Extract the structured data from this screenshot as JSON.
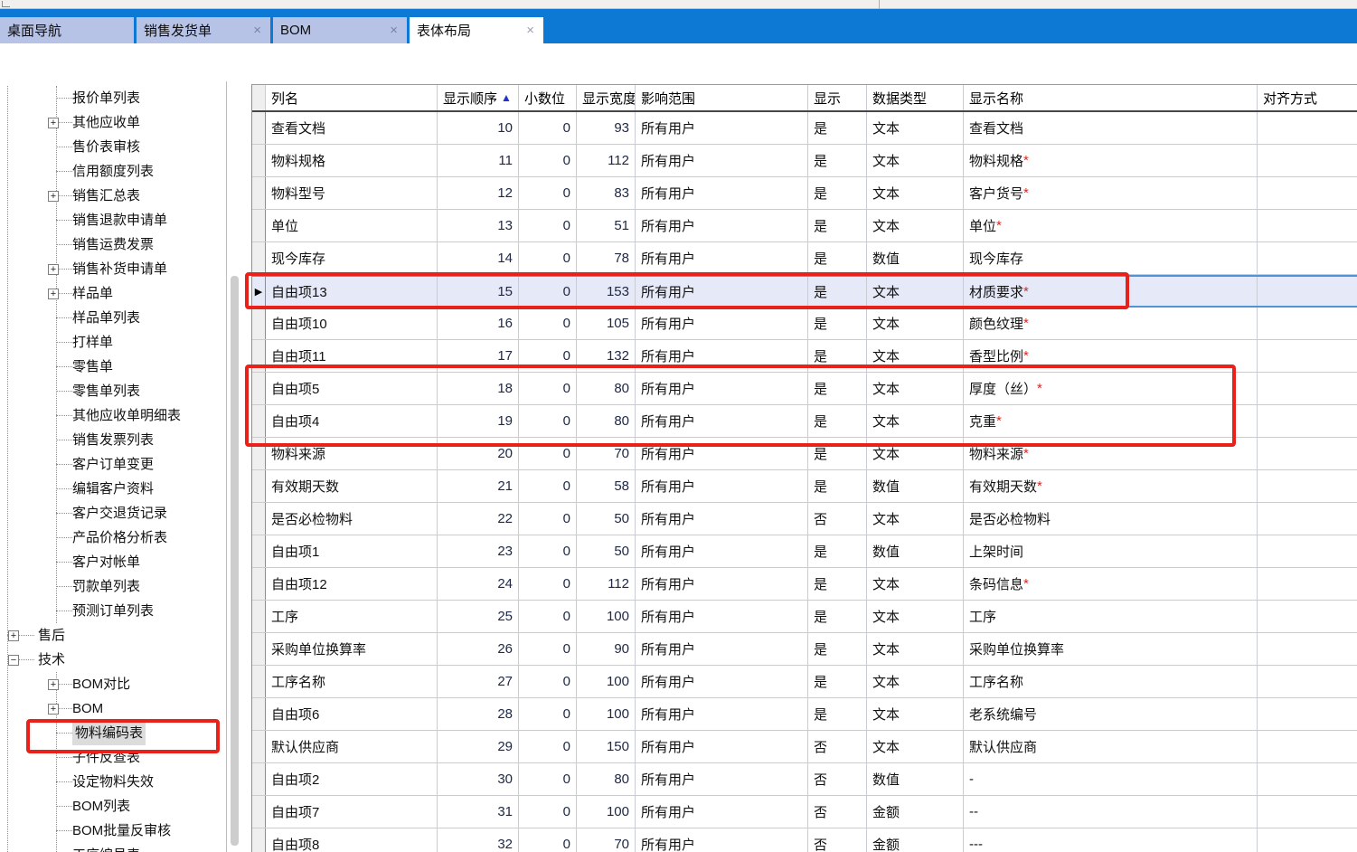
{
  "tabbar": {
    "accent_color": "#0d79d4",
    "inactive_tab_color": "#b7c3e6",
    "active_tab_color": "#ffffff",
    "close_icon": "×",
    "tabs": [
      {
        "label": "桌面导航",
        "closable": false,
        "active": false
      },
      {
        "label": "销售发货单",
        "closable": true,
        "active": false
      },
      {
        "label": "BOM",
        "closable": true,
        "active": false
      },
      {
        "label": "表体布局",
        "closable": true,
        "active": true
      }
    ]
  },
  "sidebar": {
    "items": [
      {
        "label": "报价单列表",
        "indent": 2,
        "expander": null,
        "selected": false
      },
      {
        "label": "其他应收单",
        "indent": 2,
        "expander": "plus",
        "selected": false
      },
      {
        "label": "售价表审核",
        "indent": 2,
        "expander": null,
        "selected": false
      },
      {
        "label": "信用额度列表",
        "indent": 2,
        "expander": null,
        "selected": false
      },
      {
        "label": "销售汇总表",
        "indent": 2,
        "expander": "plus",
        "selected": false
      },
      {
        "label": "销售退款申请单",
        "indent": 2,
        "expander": null,
        "selected": false
      },
      {
        "label": "销售运费发票",
        "indent": 2,
        "expander": null,
        "selected": false
      },
      {
        "label": "销售补货申请单",
        "indent": 2,
        "expander": "plus",
        "selected": false
      },
      {
        "label": "样品单",
        "indent": 2,
        "expander": "plus",
        "selected": false
      },
      {
        "label": "样品单列表",
        "indent": 2,
        "expander": null,
        "selected": false
      },
      {
        "label": "打样单",
        "indent": 2,
        "expander": null,
        "selected": false
      },
      {
        "label": "零售单",
        "indent": 2,
        "expander": null,
        "selected": false
      },
      {
        "label": "零售单列表",
        "indent": 2,
        "expander": null,
        "selected": false
      },
      {
        "label": "其他应收单明细表",
        "indent": 2,
        "expander": null,
        "selected": false
      },
      {
        "label": "销售发票列表",
        "indent": 2,
        "expander": null,
        "selected": false
      },
      {
        "label": "客户订单变更",
        "indent": 2,
        "expander": null,
        "selected": false
      },
      {
        "label": "编辑客户资料",
        "indent": 2,
        "expander": null,
        "selected": false
      },
      {
        "label": "客户交退货记录",
        "indent": 2,
        "expander": null,
        "selected": false
      },
      {
        "label": "产品价格分析表",
        "indent": 2,
        "expander": null,
        "selected": false
      },
      {
        "label": "客户对帐单",
        "indent": 2,
        "expander": null,
        "selected": false
      },
      {
        "label": "罚款单列表",
        "indent": 2,
        "expander": null,
        "selected": false
      },
      {
        "label": "预测订单列表",
        "indent": 2,
        "expander": null,
        "selected": false
      },
      {
        "label": "售后",
        "indent": 1,
        "expander": "plus",
        "selected": false
      },
      {
        "label": "技术",
        "indent": 1,
        "expander": "minus",
        "selected": false
      },
      {
        "label": "BOM对比",
        "indent": 2,
        "expander": "plus",
        "selected": false
      },
      {
        "label": "BOM",
        "indent": 2,
        "expander": "plus",
        "selected": false
      },
      {
        "label": "物料编码表",
        "indent": 2,
        "expander": null,
        "selected": true
      },
      {
        "label": "子件反查表",
        "indent": 2,
        "expander": null,
        "selected": false
      },
      {
        "label": "设定物料失效",
        "indent": 2,
        "expander": null,
        "selected": false
      },
      {
        "label": "BOM列表",
        "indent": 2,
        "expander": null,
        "selected": false
      },
      {
        "label": "BOM批量反审核",
        "indent": 2,
        "expander": null,
        "selected": false
      },
      {
        "label": "工序编号表",
        "indent": 2,
        "expander": null,
        "selected": false
      }
    ]
  },
  "table": {
    "columns": [
      {
        "label": "",
        "align": "left"
      },
      {
        "label": "列名",
        "align": "left"
      },
      {
        "label": "显示顺序",
        "align": "left",
        "sorted": "asc"
      },
      {
        "label": "小数位",
        "align": "left"
      },
      {
        "label": "显示宽度",
        "align": "left"
      },
      {
        "label": "影响范围",
        "align": "left"
      },
      {
        "label": "显示",
        "align": "left"
      },
      {
        "label": "数据类型",
        "align": "left"
      },
      {
        "label": "显示名称",
        "align": "left"
      },
      {
        "label": "对齐方式",
        "align": "left"
      }
    ],
    "sort_indicator": "▲",
    "selected_row_index": 5,
    "selected_row_marker": "▶",
    "selection_color": "#e6e9f8",
    "selection_border_color": "#4f94d8",
    "rows": [
      {
        "col_name": "查看文档",
        "order": "10",
        "decimals": "0",
        "width": "93",
        "scope": "所有用户",
        "show": "是",
        "dtype": "文本",
        "display_name": "查看文档",
        "align_mode": ""
      },
      {
        "col_name": "物料规格",
        "order": "11",
        "decimals": "0",
        "width": "112",
        "scope": "所有用户",
        "show": "是",
        "dtype": "文本",
        "display_name": "物料规格*",
        "align_mode": ""
      },
      {
        "col_name": "物料型号",
        "order": "12",
        "decimals": "0",
        "width": "83",
        "scope": "所有用户",
        "show": "是",
        "dtype": "文本",
        "display_name": "客户货号*",
        "align_mode": ""
      },
      {
        "col_name": "单位",
        "order": "13",
        "decimals": "0",
        "width": "51",
        "scope": "所有用户",
        "show": "是",
        "dtype": "文本",
        "display_name": "单位*",
        "align_mode": ""
      },
      {
        "col_name": "现今库存",
        "order": "14",
        "decimals": "0",
        "width": "78",
        "scope": "所有用户",
        "show": "是",
        "dtype": "数值",
        "display_name": "现今库存",
        "align_mode": ""
      },
      {
        "col_name": "自由项13",
        "order": "15",
        "decimals": "0",
        "width": "153",
        "scope": "所有用户",
        "show": "是",
        "dtype": "文本",
        "display_name": "材质要求*",
        "align_mode": ""
      },
      {
        "col_name": "自由项10",
        "order": "16",
        "decimals": "0",
        "width": "105",
        "scope": "所有用户",
        "show": "是",
        "dtype": "文本",
        "display_name": "颜色纹理*",
        "align_mode": ""
      },
      {
        "col_name": "自由项11",
        "order": "17",
        "decimals": "0",
        "width": "132",
        "scope": "所有用户",
        "show": "是",
        "dtype": "文本",
        "display_name": "香型比例*",
        "align_mode": ""
      },
      {
        "col_name": "自由项5",
        "order": "18",
        "decimals": "0",
        "width": "80",
        "scope": "所有用户",
        "show": "是",
        "dtype": "文本",
        "display_name": "厚度（丝）*",
        "align_mode": ""
      },
      {
        "col_name": "自由项4",
        "order": "19",
        "decimals": "0",
        "width": "80",
        "scope": "所有用户",
        "show": "是",
        "dtype": "文本",
        "display_name": "克重*",
        "align_mode": ""
      },
      {
        "col_name": "物料来源",
        "order": "20",
        "decimals": "0",
        "width": "70",
        "scope": "所有用户",
        "show": "是",
        "dtype": "文本",
        "display_name": "物料来源*",
        "align_mode": ""
      },
      {
        "col_name": "有效期天数",
        "order": "21",
        "decimals": "0",
        "width": "58",
        "scope": "所有用户",
        "show": "是",
        "dtype": "数值",
        "display_name": "有效期天数*",
        "align_mode": ""
      },
      {
        "col_name": "是否必检物料",
        "order": "22",
        "decimals": "0",
        "width": "50",
        "scope": "所有用户",
        "show": "否",
        "dtype": "文本",
        "display_name": "是否必检物料",
        "align_mode": ""
      },
      {
        "col_name": "自由项1",
        "order": "23",
        "decimals": "0",
        "width": "50",
        "scope": "所有用户",
        "show": "是",
        "dtype": "数值",
        "display_name": "上架时间",
        "align_mode": ""
      },
      {
        "col_name": "自由项12",
        "order": "24",
        "decimals": "0",
        "width": "112",
        "scope": "所有用户",
        "show": "是",
        "dtype": "文本",
        "display_name": "条码信息*",
        "align_mode": ""
      },
      {
        "col_name": "工序",
        "order": "25",
        "decimals": "0",
        "width": "100",
        "scope": "所有用户",
        "show": "是",
        "dtype": "文本",
        "display_name": "工序",
        "align_mode": ""
      },
      {
        "col_name": "采购单位换算率",
        "order": "26",
        "decimals": "0",
        "width": "90",
        "scope": "所有用户",
        "show": "是",
        "dtype": "文本",
        "display_name": "采购单位换算率",
        "align_mode": ""
      },
      {
        "col_name": "工序名称",
        "order": "27",
        "decimals": "0",
        "width": "100",
        "scope": "所有用户",
        "show": "是",
        "dtype": "文本",
        "display_name": "工序名称",
        "align_mode": ""
      },
      {
        "col_name": "自由项6",
        "order": "28",
        "decimals": "0",
        "width": "100",
        "scope": "所有用户",
        "show": "是",
        "dtype": "文本",
        "display_name": "老系统编号",
        "align_mode": ""
      },
      {
        "col_name": "默认供应商",
        "order": "29",
        "decimals": "0",
        "width": "150",
        "scope": "所有用户",
        "show": "否",
        "dtype": "文本",
        "display_name": "默认供应商",
        "align_mode": ""
      },
      {
        "col_name": "自由项2",
        "order": "30",
        "decimals": "0",
        "width": "80",
        "scope": "所有用户",
        "show": "否",
        "dtype": "数值",
        "display_name": "-",
        "align_mode": ""
      },
      {
        "col_name": "自由项7",
        "order": "31",
        "decimals": "0",
        "width": "100",
        "scope": "所有用户",
        "show": "否",
        "dtype": "金额",
        "display_name": "--",
        "align_mode": ""
      },
      {
        "col_name": "自由项8",
        "order": "32",
        "decimals": "0",
        "width": "70",
        "scope": "所有用户",
        "show": "否",
        "dtype": "金额",
        "display_name": "---",
        "align_mode": ""
      }
    ]
  },
  "annotations": {
    "box_color": "#e9211b",
    "highlights": [
      {
        "target": "sidebar item 物料编码表"
      },
      {
        "target": "table row 自由项13 (显示顺序 15, 材质要求*)"
      },
      {
        "target": "table rows 自由项5 and 自由项4 (显示顺序 18-19, 厚度（丝）* / 克重*)"
      }
    ]
  }
}
